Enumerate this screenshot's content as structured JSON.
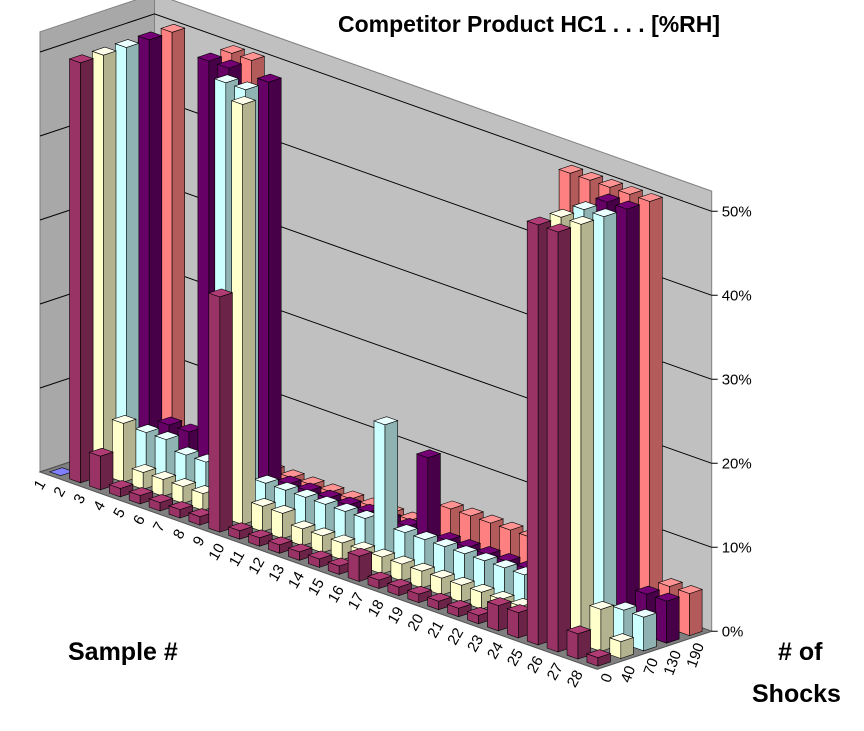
{
  "chart_data": {
    "type": "3d-bar",
    "title": "Competitor Product HC1 . . . [%RH]",
    "xlabel": "Sample #",
    "zlabel_line1": "# of",
    "zlabel_line2": "Shocks",
    "y_ticks": [
      "0%",
      "10%",
      "20%",
      "30%",
      "40%",
      "50%"
    ],
    "ylim": [
      0,
      50
    ],
    "samples": [
      "1",
      "2",
      "3",
      "4",
      "5",
      "6",
      "7",
      "8",
      "9",
      "10",
      "11",
      "12",
      "13",
      "14",
      "15",
      "16",
      "17",
      "18",
      "19",
      "20",
      "21",
      "22",
      "23",
      "24",
      "25",
      "26",
      "27",
      "28"
    ],
    "series": [
      {
        "name": "0",
        "color": "#993366",
        "values": [
          0,
          50,
          4,
          1,
          1,
          1,
          1,
          1,
          28,
          1,
          1,
          1,
          1,
          1,
          1,
          3,
          1,
          1,
          1,
          1,
          1,
          1,
          3,
          3,
          50,
          50,
          3,
          1
        ]
      },
      {
        "name": "40",
        "color": "#ffffcc",
        "values": [
          0,
          50,
          7,
          2,
          2,
          2,
          2,
          1,
          50,
          3,
          3,
          2,
          2,
          2,
          2,
          2,
          2,
          2,
          2,
          2,
          2,
          2,
          2,
          2,
          50,
          50,
          5,
          2
        ]
      },
      {
        "name": "70",
        "color": "#ccffff",
        "values": [
          0,
          50,
          5,
          5,
          4,
          4,
          50,
          50,
          4,
          4,
          4,
          4,
          4,
          4,
          16,
          4,
          4,
          4,
          4,
          4,
          4,
          4,
          4,
          4,
          50,
          50,
          4,
          4
        ]
      },
      {
        "name": "130",
        "color": "#660066",
        "values": [
          0,
          50,
          5,
          5,
          50,
          50,
          3,
          50,
          3,
          3,
          3,
          3,
          3,
          3,
          3,
          12,
          3,
          3,
          3,
          3,
          3,
          3,
          3,
          3,
          50,
          50,
          5,
          5
        ]
      },
      {
        "name": "190",
        "color": "#ff8080",
        "values": [
          0,
          50,
          3,
          3,
          50,
          50,
          2,
          2,
          2,
          2,
          2,
          2,
          2,
          2,
          2,
          5,
          5,
          5,
          5,
          5,
          5,
          50,
          50,
          50,
          50,
          50,
          5,
          5
        ]
      }
    ]
  }
}
